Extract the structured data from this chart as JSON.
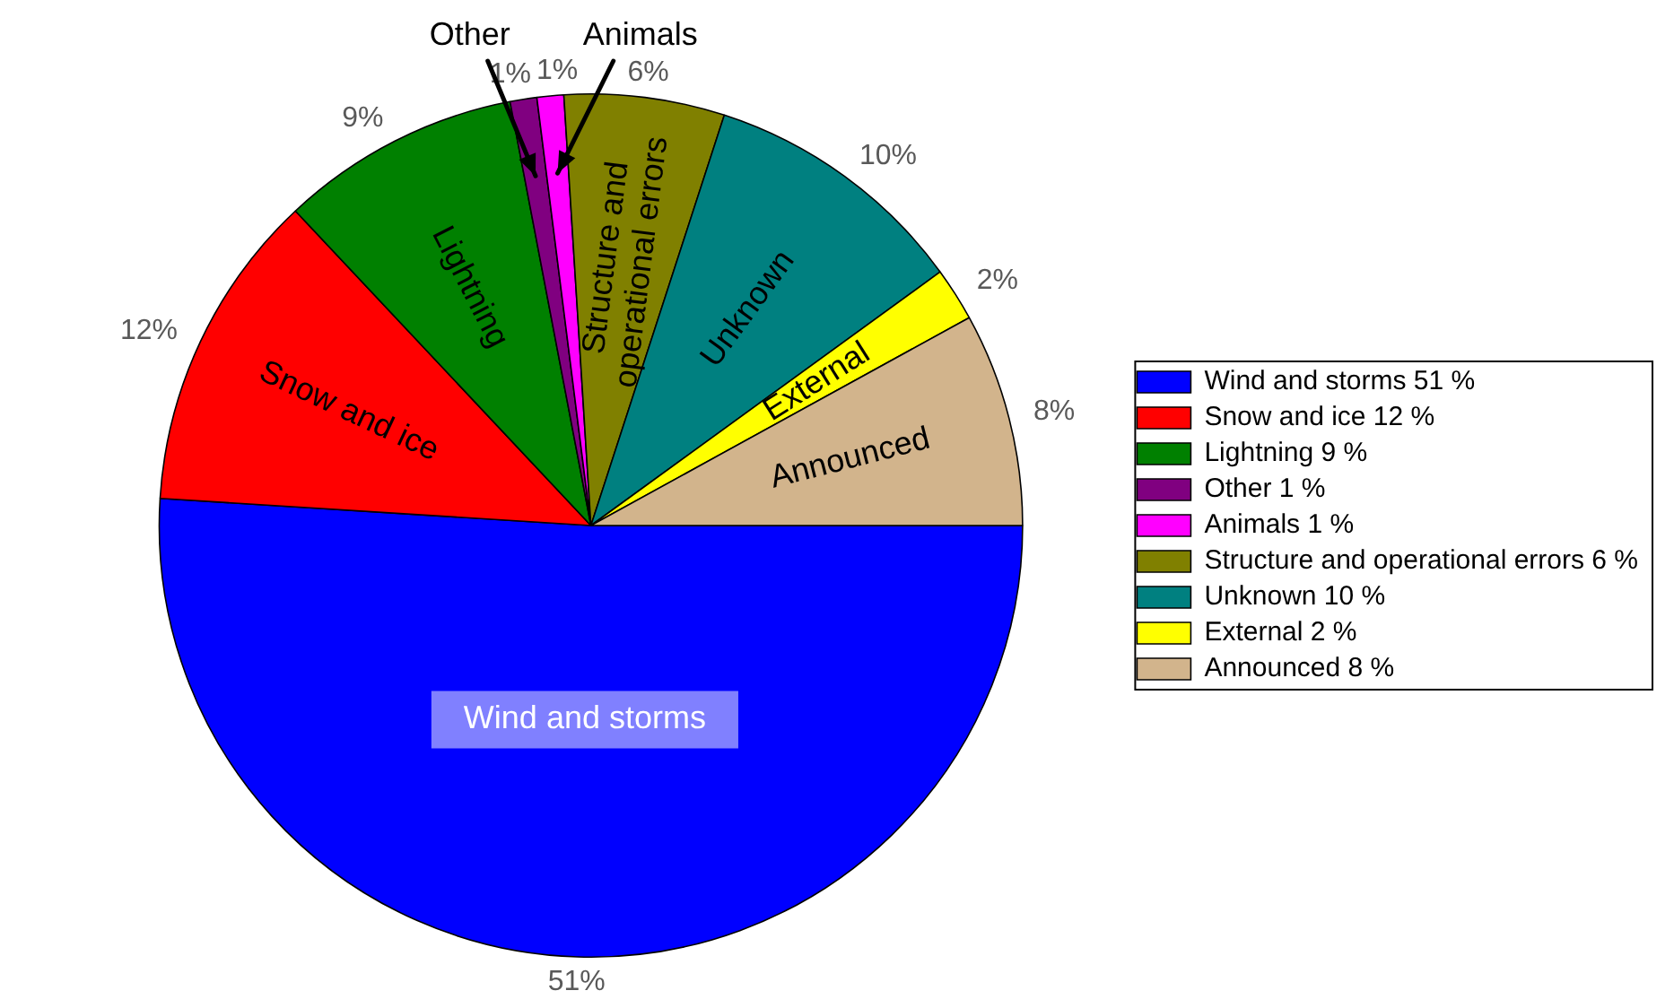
{
  "chart_data": {
    "type": "pie",
    "categories": [
      "Wind and storms 51 %",
      "Snow and ice 12 %",
      "Lightning 9 %",
      "Other 1 %",
      "Animals 1 %",
      "Structure and operational errors 6 %",
      "Unknown 10 %",
      "External 2 %",
      "Announced 8 %"
    ],
    "values": [
      51,
      12,
      9,
      1,
      1,
      6,
      10,
      2,
      8
    ],
    "colors": [
      "#0000ff",
      "#ff0000",
      "#008000",
      "#800080",
      "#ff00ff",
      "#808000",
      "#008080",
      "#ffff00",
      "#d2b48c"
    ],
    "value_labels": [
      "51%",
      "12%",
      "9%",
      "1%",
      "1%",
      "6%",
      "10%",
      "2%",
      "8%"
    ],
    "annotations": [
      {
        "text": "Wind and storms",
        "x": "Wind and storms 51 %"
      },
      {
        "text": "Snow and ice",
        "x": "Snow and ice 12 %"
      },
      {
        "text": "Lightning",
        "x": "Lightning 9 %"
      },
      {
        "text": "Other",
        "x": "Other 1 %"
      },
      {
        "text": "Animals",
        "x": "Animals 1 %"
      },
      {
        "text": "Structure and operational errors",
        "x": "Structure and operational errors 6 %"
      },
      {
        "text": "Unknown",
        "x": "Unknown 10 %"
      },
      {
        "text": "External",
        "x": "External 2 %"
      },
      {
        "text": "Announced",
        "x": "Announced 8 %"
      }
    ],
    "legend": "right"
  }
}
